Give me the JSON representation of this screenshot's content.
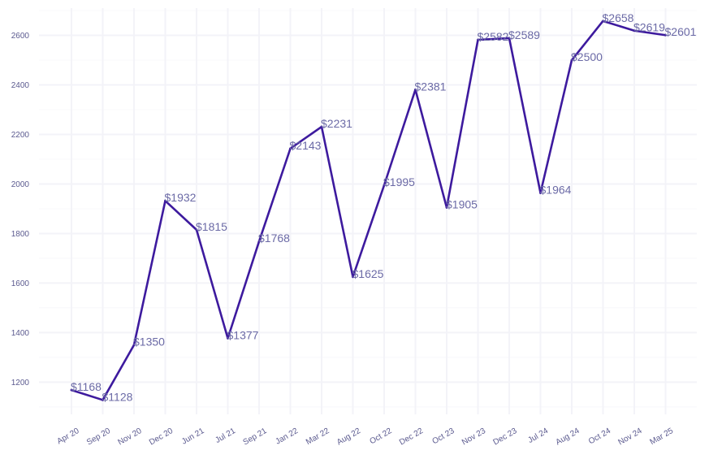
{
  "chart_data": {
    "type": "line",
    "title": "",
    "xlabel": "",
    "ylabel": "",
    "categories": [
      "Apr 20",
      "Sep 20",
      "Nov 20",
      "Dec 20",
      "Jun 21",
      "Jul 21",
      "Sep 21",
      "Jan 22",
      "Mar 22",
      "Aug 22",
      "Oct 22",
      "Dec 22",
      "Oct 23",
      "Nov 23",
      "Dec 23",
      "Jul 24",
      "Aug 24",
      "Oct 24",
      "Nov 24",
      "Mar 25"
    ],
    "values": [
      1168,
      1128,
      1350,
      1932,
      1815,
      1377,
      1768,
      2143,
      2231,
      1625,
      1995,
      2381,
      1905,
      2582,
      2589,
      1964,
      2500,
      2658,
      2619,
      2601
    ],
    "data_labels": [
      "$1168",
      "$1128",
      "$1350",
      "$1932",
      "$1815",
      "$1377",
      "$1768",
      "$2143",
      "$2231",
      "$1625",
      "$1995",
      "$2381",
      "$1905",
      "$2582",
      "$2589",
      "$1964",
      "$2500",
      "$2658",
      "$2619",
      "$2601"
    ],
    "yticks": [
      1200,
      1400,
      1600,
      1800,
      2000,
      2200,
      2400,
      2600
    ],
    "ylim": [
      1070,
      2710
    ],
    "grid": true,
    "legend": "none",
    "colors": {
      "line": "#3d1a9e",
      "label": "#6b6aa6",
      "tick": "#5b5a8f",
      "grid": "#f3f3f8"
    }
  }
}
